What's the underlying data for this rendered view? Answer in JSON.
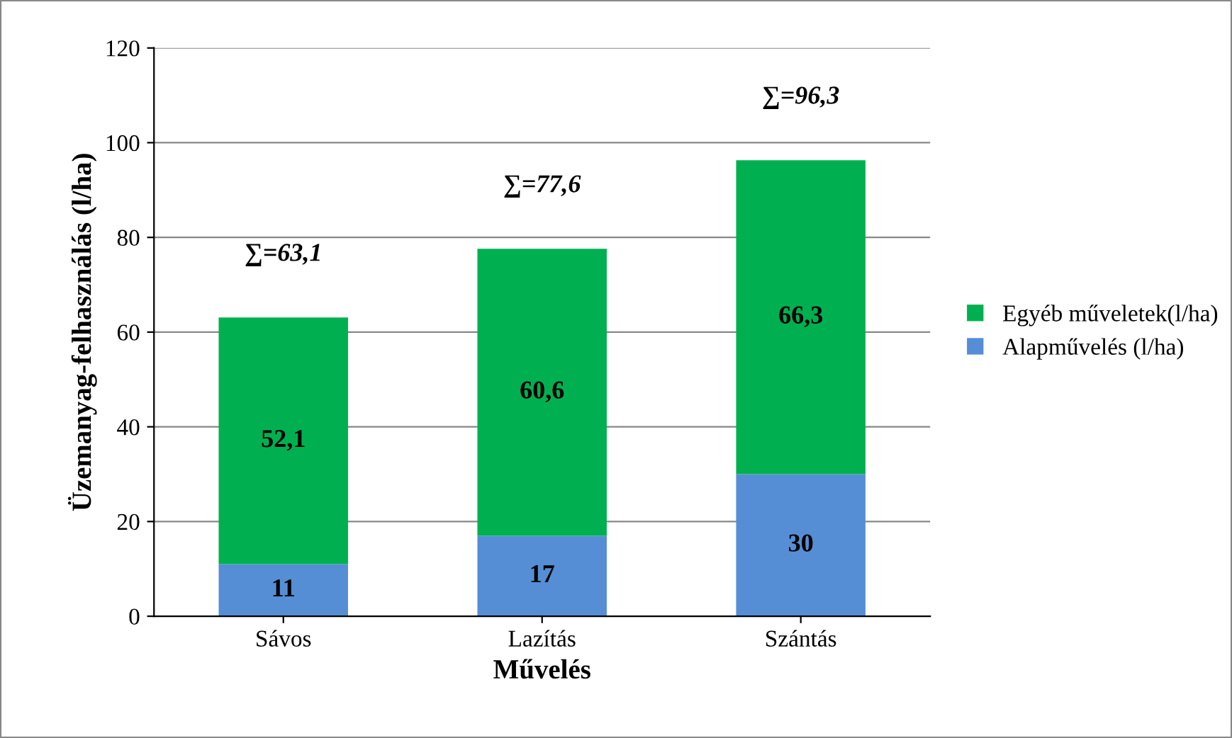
{
  "chart_data": {
    "type": "bar",
    "stacked": true,
    "xlabel": "Művelés",
    "ylabel": "Üzemanyag-felhasználás (l/ha)",
    "categories": [
      "Sávos",
      "Lazítás",
      "Szántás"
    ],
    "series": [
      {
        "name": "Alapművelés (l/ha)",
        "color": "#558ed5",
        "values": [
          11,
          17,
          30
        ],
        "value_labels": [
          "11",
          "17",
          "30"
        ]
      },
      {
        "name": "Egyéb műveletek(l/ha)",
        "color": "#00b050",
        "values": [
          52.1,
          60.6,
          66.3
        ],
        "value_labels": [
          "52,1",
          "60,6",
          "66,3"
        ]
      }
    ],
    "totals": [
      "∑=63,1",
      "∑=77,6",
      "∑=96,3"
    ],
    "ylim": [
      0,
      120
    ],
    "yticks": [
      0,
      20,
      40,
      60,
      80,
      100,
      120
    ],
    "grid": "y",
    "legend": "right"
  }
}
